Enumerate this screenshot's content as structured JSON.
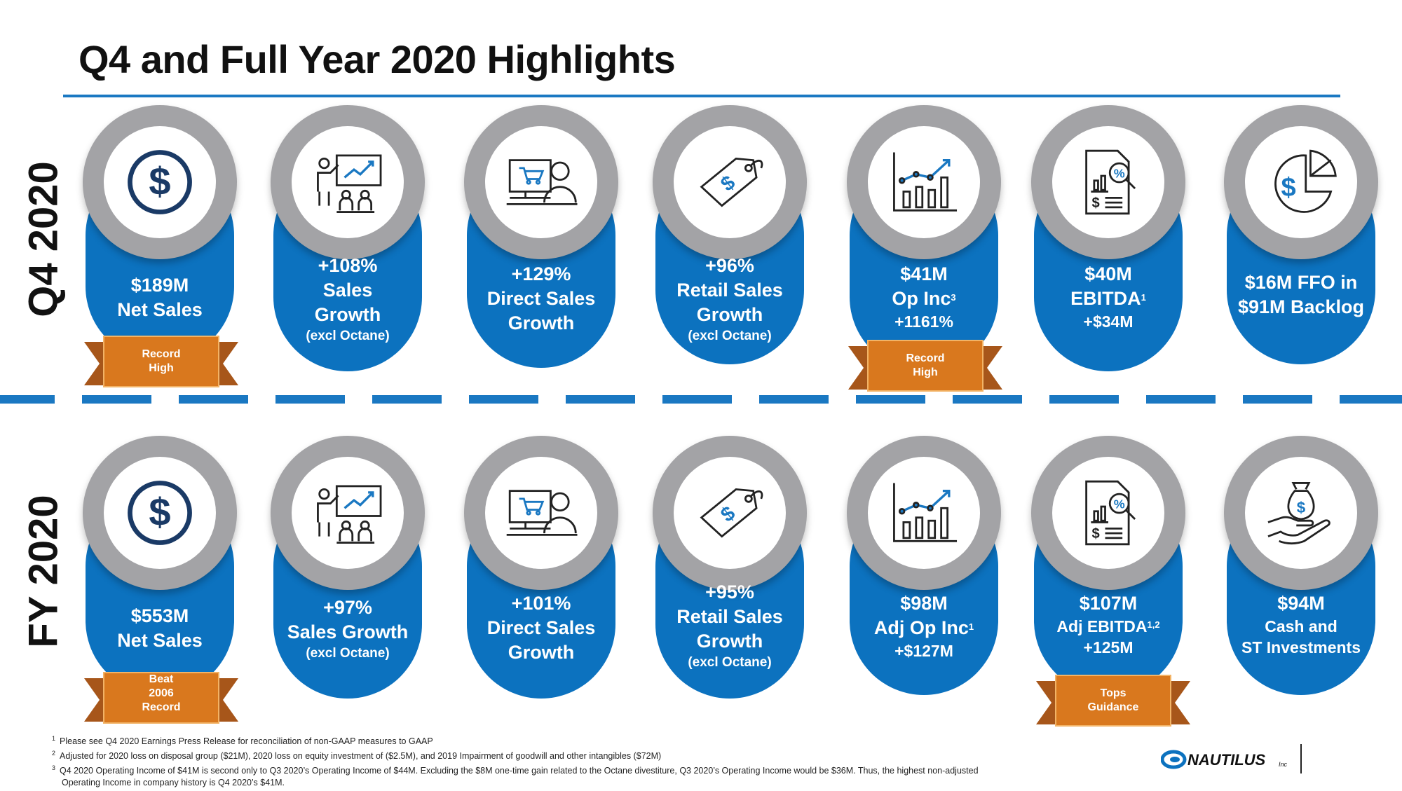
{
  "title": "Q4 and Full Year 2020 Highlights",
  "row_labels": {
    "q4": "Q4 2020",
    "fy": "FY 2020"
  },
  "q4_cards": [
    {
      "icon": "dollar-icon",
      "lines": [
        "$189M",
        "Net Sales"
      ],
      "sub": []
    },
    {
      "icon": "presentation-icon",
      "lines": [
        "+108%",
        "Sales",
        "Growth"
      ],
      "sub": [
        "(excl Octane)"
      ]
    },
    {
      "icon": "computer-user-icon",
      "lines": [
        "+129%",
        "Direct Sales",
        "Growth"
      ],
      "sub": []
    },
    {
      "icon": "price-tag-icon",
      "lines": [
        "+96%",
        "Retail Sales",
        "Growth"
      ],
      "sub": [
        "(excl Octane)"
      ]
    },
    {
      "icon": "line-bar-chart-icon",
      "lines": [
        "$41M",
        "Op Inc"
      ],
      "fn": "3",
      "sub2": "+1161%"
    },
    {
      "icon": "financial-report-icon",
      "lines": [
        "$40M",
        "EBITDA"
      ],
      "fn": "1",
      "sub2": "+$34M"
    },
    {
      "icon": "dollar-pie-chart-icon",
      "lines": [
        "$16M FFO in",
        "$91M Backlog"
      ],
      "sub": []
    }
  ],
  "fy_cards": [
    {
      "icon": "dollar-icon",
      "lines": [
        "$553M",
        "Net Sales"
      ],
      "sub": []
    },
    {
      "icon": "presentation-icon",
      "lines": [
        "+97%",
        "Sales Growth"
      ],
      "sub": [
        "(excl Octane)"
      ]
    },
    {
      "icon": "computer-user-icon",
      "lines": [
        "+101%",
        "Direct Sales",
        "Growth"
      ],
      "sub": []
    },
    {
      "icon": "price-tag-icon",
      "lines": [
        "+95%",
        "Retail Sales",
        "Growth"
      ],
      "sub": [
        "(excl Octane)"
      ]
    },
    {
      "icon": "line-bar-chart-icon",
      "lines": [
        "$98M",
        "Adj Op Inc"
      ],
      "fn": "1",
      "sub2": "+$127M"
    },
    {
      "icon": "financial-report-icon",
      "lines": [
        "$107M",
        "Adj EBITDA"
      ],
      "fn": "1,2",
      "sub2": "+125M"
    },
    {
      "icon": "money-hand-icon",
      "lines": [
        "$94M"
      ],
      "dim": [
        "Cash and",
        "ST Investments"
      ]
    }
  ],
  "ribbons": {
    "q4_net_sales": [
      "Record",
      "High"
    ],
    "q4_op_inc": [
      "Record",
      "High"
    ],
    "fy_net_sales": [
      "Beat",
      "2006",
      "Record"
    ],
    "fy_ebitda": [
      "Tops",
      "Guidance"
    ]
  },
  "footnotes": [
    {
      "num": "1",
      "text": "Please see Q4 2020 Earnings Press Release for reconciliation of non-GAAP measures to GAAP"
    },
    {
      "num": "2",
      "text": "Adjusted for 2020 loss on disposal group ($21M), 2020 loss on equity investment of ($2.5M), and 2019 Impairment of goodwill and other intangibles ($72M)"
    },
    {
      "num": "3",
      "text": "Q4 2020 Operating Income of $41M is second only to Q3 2020’s Operating Income of $44M. Excluding the $8M one-time gain related to the Octane divestiture, Q3 2020’s Operating Income would be $36M. Thus, the highest non-adjusted Operating Income in company history is Q4 2020’s $41M."
    }
  ],
  "logo": {
    "name": "NAUTILUS",
    "suffix": "Inc"
  },
  "colors": {
    "blue": "#0c72bf",
    "rule": "#1a78c2",
    "ring": "#a3a3a6",
    "ribbon": "#d9781e",
    "ribbon_dark": "#a7561a"
  }
}
